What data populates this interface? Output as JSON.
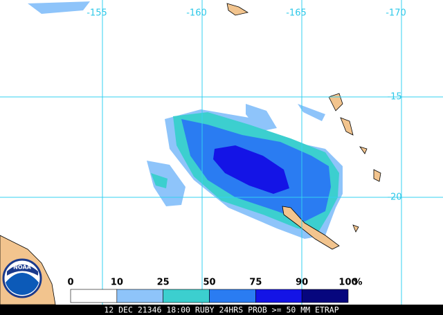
{
  "map": {
    "longitudes": [
      -155,
      -160,
      -165,
      -170
    ],
    "latitudes": [
      -15,
      -20
    ],
    "colorbar": {
      "ticks": [
        0,
        10,
        25,
        50,
        75,
        90,
        100
      ],
      "unit": "%",
      "colors": [
        "#ffffff",
        "#8ec4fa",
        "#3ccfcf",
        "#2a7cf2",
        "#1414e6",
        "#06067e"
      ]
    },
    "logo": "NOAA",
    "footer": "12 DEC 21346 18:00 RUBY 24HRS PROB >= 50 MM ETRAP"
  }
}
